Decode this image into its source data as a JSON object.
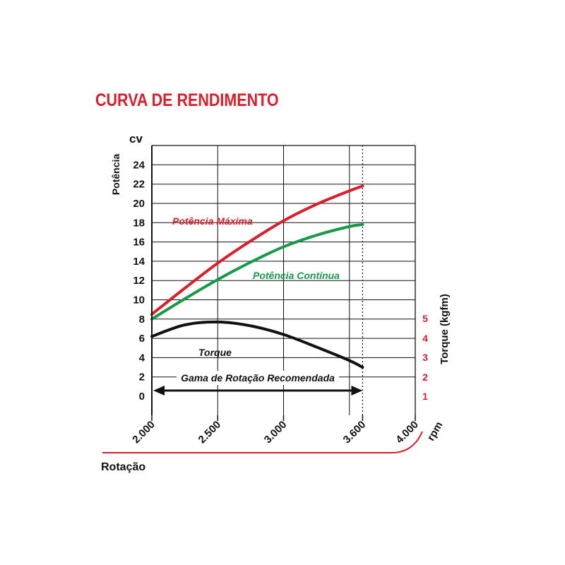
{
  "title": "CURVA DE RENDIMENTO",
  "colors": {
    "title": "#d81f2a",
    "potencia_maxima": "#d81f2a",
    "potencia_continua": "#159a4a",
    "torque": "#111111",
    "accent_line": "#d81f2a"
  },
  "chart_data": {
    "type": "line",
    "x_unit_label": "rpm",
    "xlabel": "Rotação",
    "x_ticks": [
      2000,
      2500,
      3000,
      3600,
      4000
    ],
    "x_tick_labels": [
      "2.000",
      "2.500",
      "3.000",
      "3.600",
      "4.000"
    ],
    "xlim": [
      2000,
      4000
    ],
    "y_unit_label": "cv",
    "ylabel": "Potência",
    "ylim": [
      0,
      26
    ],
    "y_ticks": [
      0,
      2,
      4,
      6,
      8,
      10,
      12,
      14,
      16,
      18,
      20,
      22,
      24
    ],
    "y2label": "Torque (kgfm)",
    "y2_ticks": [
      1,
      2,
      3,
      4,
      5
    ],
    "grid": true,
    "series": [
      {
        "name": "Potência Máxima",
        "axis": "left",
        "x": [
          2000,
          2250,
          2500,
          2750,
          3000,
          3250,
          3500,
          3600
        ],
        "y": [
          8.5,
          11.2,
          13.8,
          16.1,
          18.2,
          19.9,
          21.3,
          21.8
        ]
      },
      {
        "name": "Potência Contínua",
        "axis": "left",
        "x": [
          2000,
          2250,
          2500,
          2750,
          3000,
          3250,
          3500,
          3600
        ],
        "y": [
          8.0,
          10.1,
          12.1,
          13.9,
          15.5,
          16.7,
          17.6,
          17.8
        ]
      },
      {
        "name": "Torque",
        "axis": "left",
        "x": [
          2000,
          2250,
          2500,
          2750,
          3000,
          3250,
          3500,
          3600
        ],
        "y": [
          6.2,
          7.4,
          7.7,
          7.3,
          6.4,
          5.1,
          3.7,
          3.0
        ]
      }
    ],
    "annotations": [
      {
        "text": "Gama de Rotação Recomendada",
        "range": [
          2000,
          3600
        ],
        "y": 0.6
      }
    ],
    "reference_line_x": 3600
  }
}
